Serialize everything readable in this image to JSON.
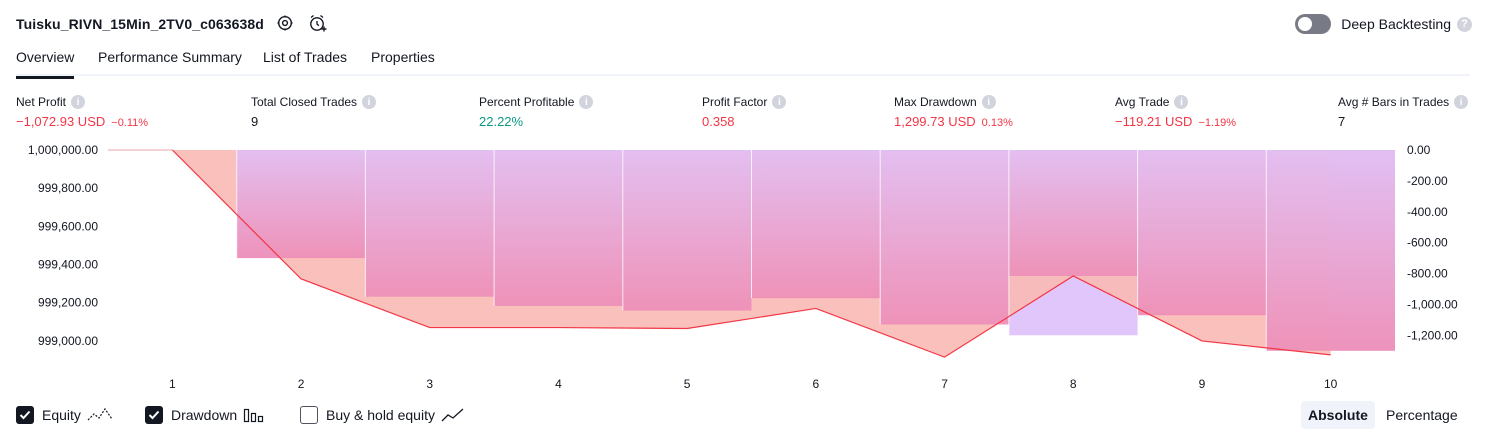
{
  "header": {
    "strategy_name": "Tuisku_RIVN_15Min_2TV0_c063638d",
    "settings_icon": "gear-icon",
    "alert_icon": "alarm-clock-plus-icon",
    "deep_backtesting_label": "Deep Backtesting",
    "deep_backtesting_enabled": false,
    "help_icon": "question-icon",
    "help_text": "?"
  },
  "tabs": [
    {
      "label": "Overview",
      "active": true
    },
    {
      "label": "Performance Summary",
      "active": false
    },
    {
      "label": "List of Trades",
      "active": false
    },
    {
      "label": "Properties",
      "active": false
    }
  ],
  "metrics": {
    "net_profit": {
      "label": "Net Profit",
      "value": "−1,072.93 USD",
      "pct": "−0.11%",
      "color": "#f23645"
    },
    "total_closed_trades": {
      "label": "Total Closed Trades",
      "value": "9",
      "color": "#131722"
    },
    "percent_profitable": {
      "label": "Percent Profitable",
      "value": "22.22%",
      "color": "#089981"
    },
    "profit_factor": {
      "label": "Profit Factor",
      "value": "0.358",
      "color": "#f23645"
    },
    "max_drawdown": {
      "label": "Max Drawdown",
      "value": "1,299.73 USD",
      "pct": "0.13%",
      "color": "#f23645"
    },
    "avg_trade": {
      "label": "Avg Trade",
      "value": "−119.21 USD",
      "pct": "−1.19%",
      "color": "#f23645"
    },
    "avg_bars": {
      "label": "Avg # Bars in Trades",
      "value": "7",
      "color": "#131722"
    },
    "info_text": "i"
  },
  "chart_data": {
    "type": "line",
    "x": [
      1,
      2,
      3,
      4,
      5,
      6,
      7,
      8,
      9,
      10
    ],
    "series": [
      {
        "name": "Equity",
        "values": [
          1000000.0,
          999325.0,
          999070.0,
          999070.0,
          999065.0,
          999170.0,
          998915.0,
          999340.0,
          999000.0,
          998927.0
        ],
        "color": "#f23645"
      },
      {
        "name": "Drawdown",
        "values": [
          0.0,
          -700.0,
          -950.0,
          -1010.0,
          -1040.0,
          -960.0,
          -1130.0,
          -1200.0,
          -1070.0,
          -1300.0
        ],
        "color": "#b27ff2"
      }
    ],
    "y_left_ticks": [
      "1,000,000.00",
      "999,800.00",
      "999,600.00",
      "999,400.00",
      "999,200.00",
      "999,000.00"
    ],
    "y_right_ticks": [
      "0.00",
      "-200.00",
      "-400.00",
      "-600.00",
      "-800.00",
      "-1,000.00",
      "-1,200.00"
    ],
    "y_left_range": [
      998900,
      1000000
    ],
    "y_right_range": [
      -1360,
      0
    ],
    "x_range": [
      0.5,
      10.5
    ],
    "grid": false
  },
  "legend": {
    "equity": {
      "label": "Equity",
      "checked": true,
      "icon": "equity-line-icon"
    },
    "drawdown": {
      "label": "Drawdown",
      "checked": true,
      "icon": "drawdown-bars-icon"
    },
    "buy_hold": {
      "label": "Buy & hold equity",
      "checked": false,
      "icon": "buy-hold-line-icon"
    },
    "absolute_label": "Absolute",
    "percentage_label": "Percentage",
    "mode": "Absolute"
  },
  "colors": {
    "text": "#131722",
    "muted": "#787b86",
    "loss": "#f23645",
    "profit": "#089981",
    "drawdown_bar": "#e1c6fb",
    "equity_fill": "#f9b9b5"
  }
}
